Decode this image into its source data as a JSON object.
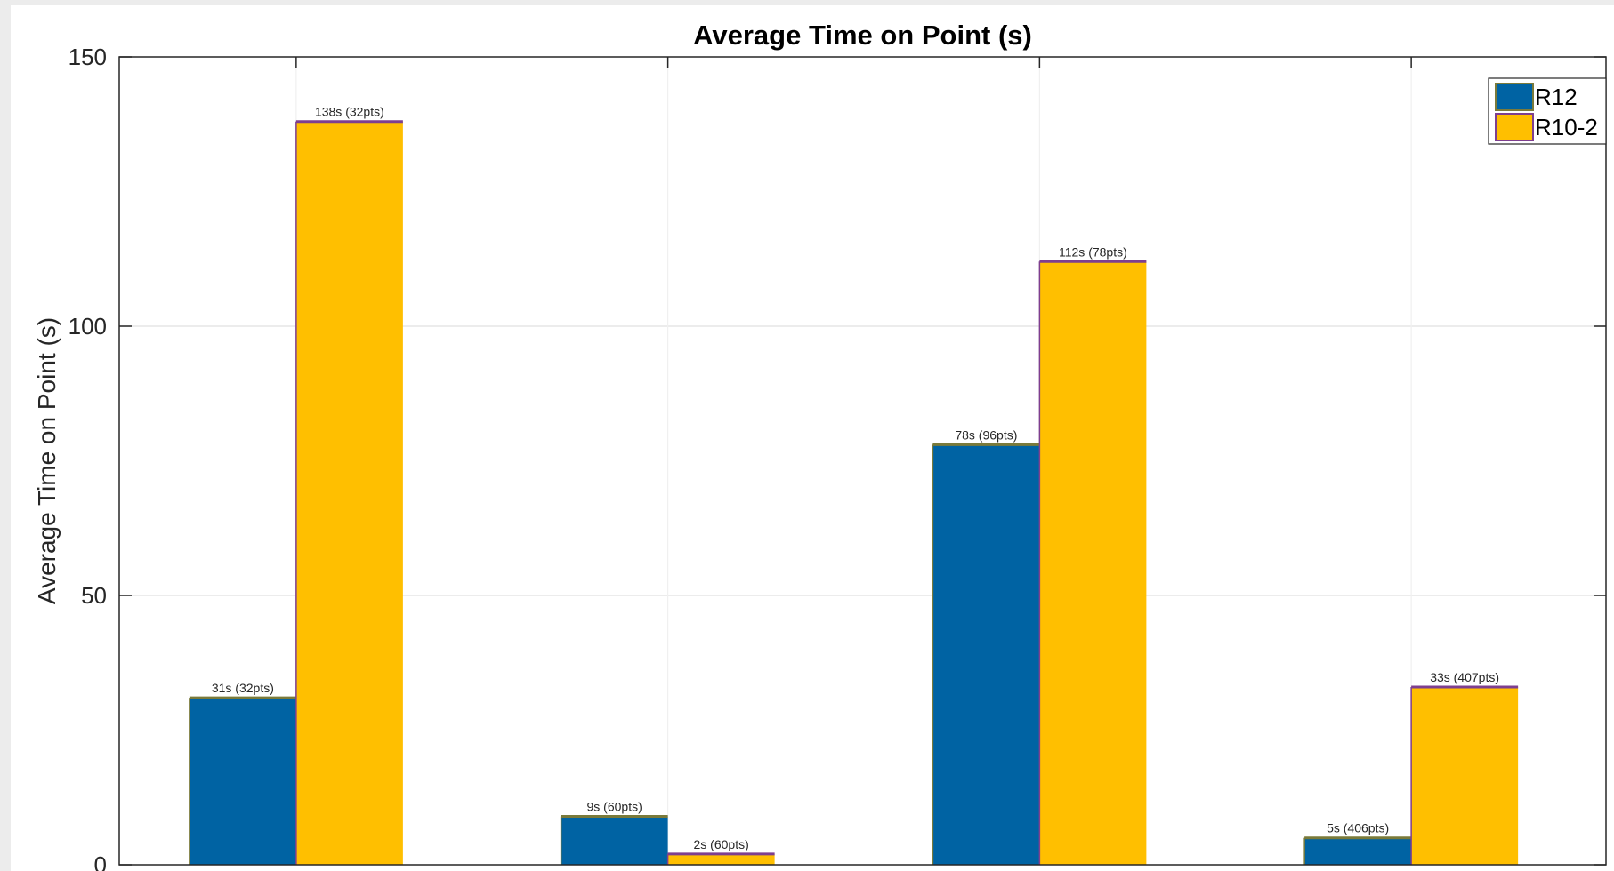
{
  "chart_data": {
    "type": "bar",
    "title": "Average Time on Point (s)",
    "xlabel": "",
    "ylabel": "Average Time on Point (s)",
    "ylim": [
      0,
      150
    ],
    "yticks": [
      0,
      50,
      100,
      150
    ],
    "grid": true,
    "legend_position": "top-right",
    "categories": [
      "",
      "",
      "",
      ""
    ],
    "series": [
      {
        "name": "R12",
        "color": "#0063a3",
        "values": [
          31,
          9,
          78,
          5
        ],
        "labels": [
          "31s (32pts)",
          "9s (60pts)",
          "78s (96pts)",
          "5s (406pts)"
        ]
      },
      {
        "name": "R10-2",
        "color": "#ffbf00",
        "values": [
          138,
          2,
          112,
          33
        ],
        "labels": [
          "138s (32pts)",
          "2s (60pts)",
          "112s (78pts)",
          "33s (407pts)"
        ]
      }
    ]
  }
}
